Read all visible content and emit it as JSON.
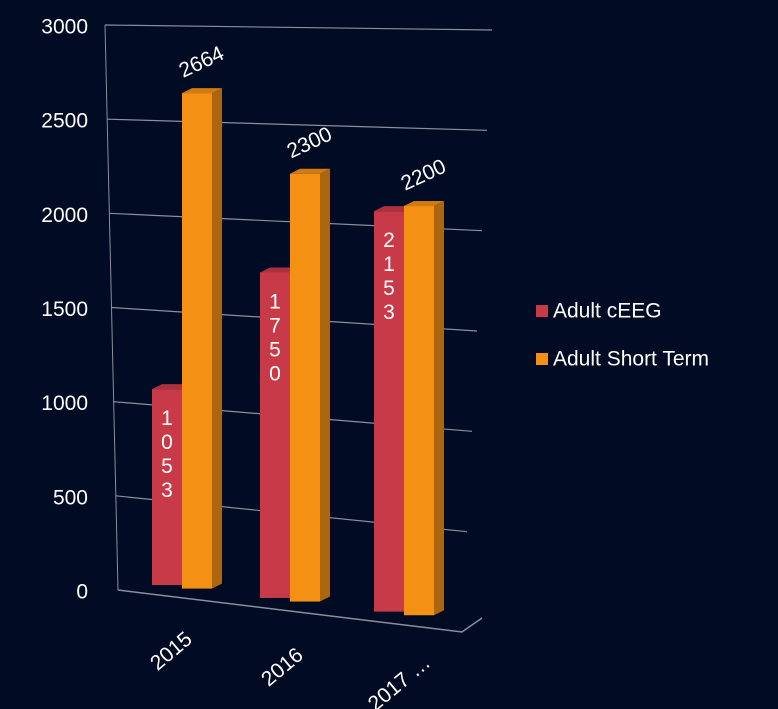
{
  "chart_data": {
    "type": "bar3d",
    "categories": [
      "2015",
      "2016",
      "2017 …"
    ],
    "series": [
      {
        "name": "Adult cEEG",
        "color": "#c93a48",
        "values": [
          1053,
          1750,
          2153
        ]
      },
      {
        "name": "Adult Short Term",
        "color": "#f49115",
        "values": [
          2664,
          2300,
          2200
        ]
      }
    ],
    "ylim": [
      0,
      3000
    ],
    "yticks": [
      0,
      500,
      1000,
      1500,
      2000,
      2500,
      3000
    ],
    "grid": true,
    "legend": "right"
  }
}
